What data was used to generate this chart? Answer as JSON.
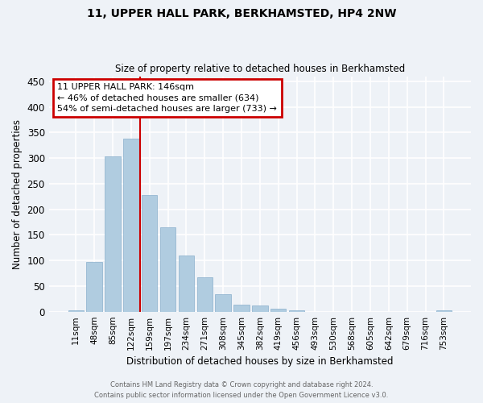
{
  "title": "11, UPPER HALL PARK, BERKHAMSTED, HP4 2NW",
  "subtitle": "Size of property relative to detached houses in Berkhamsted",
  "xlabel": "Distribution of detached houses by size in Berkhamsted",
  "ylabel": "Number of detached properties",
  "bar_labels": [
    "11sqm",
    "48sqm",
    "85sqm",
    "122sqm",
    "159sqm",
    "197sqm",
    "234sqm",
    "271sqm",
    "308sqm",
    "345sqm",
    "382sqm",
    "419sqm",
    "456sqm",
    "493sqm",
    "530sqm",
    "568sqm",
    "605sqm",
    "642sqm",
    "679sqm",
    "716sqm",
    "753sqm"
  ],
  "bar_values": [
    3,
    97,
    303,
    338,
    228,
    165,
    109,
    67,
    34,
    14,
    12,
    6,
    2,
    0,
    0,
    0,
    0,
    0,
    0,
    0,
    3
  ],
  "highlight_line_after_index": 3,
  "bar_color": "#b0cce0",
  "bar_edge_color": "#8ab0cc",
  "highlight_line_color": "#cc0000",
  "annotation_text": "11 UPPER HALL PARK: 146sqm\n← 46% of detached houses are smaller (634)\n54% of semi-detached houses are larger (733) →",
  "annotation_box_edge_color": "#cc0000",
  "annotation_box_face_color": "#ffffff",
  "ylim": [
    0,
    460
  ],
  "yticks": [
    0,
    50,
    100,
    150,
    200,
    250,
    300,
    350,
    400,
    450
  ],
  "footer_line1": "Contains HM Land Registry data © Crown copyright and database right 2024.",
  "footer_line2": "Contains public sector information licensed under the Open Government Licence v3.0.",
  "background_color": "#eef2f7",
  "grid_color": "#ffffff",
  "fig_width": 6.0,
  "fig_height": 5.0
}
